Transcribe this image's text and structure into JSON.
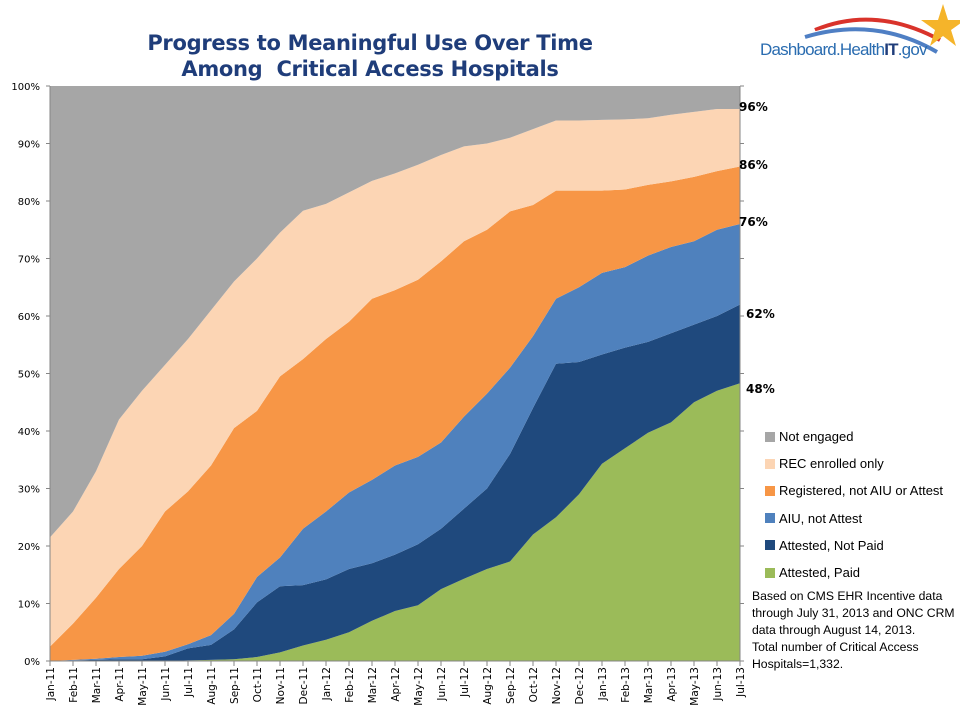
{
  "logo": {
    "text_prefix": "Dashboard.Health",
    "text_bold": "IT",
    "text_suffix": ".gov",
    "name": "Dashboard.HealthIT.gov"
  },
  "note": [
    "Based on CMS EHR Incentive data through July 31, 2013  and ONC CRM data through August 14, 2013.",
    "Total number of Critical Access Hospitals=1,332."
  ],
  "chart_data": {
    "type": "area",
    "stacked": true,
    "title": [
      "Progress to Meaningful Use Over Time",
      "Among  Critical Access Hospitals"
    ],
    "xlabel": "",
    "ylabel": "",
    "ylim": [
      0,
      100
    ],
    "y_ticks": [
      "0%",
      "10%",
      "20%",
      "30%",
      "40%",
      "50%",
      "60%",
      "70%",
      "80%",
      "90%",
      "100%"
    ],
    "grid": false,
    "legend_position": "right",
    "categories": [
      "Jan-11",
      "Feb-11",
      "Mar-11",
      "Apr-11",
      "May-11",
      "Jun-11",
      "Jul-11",
      "Aug-11",
      "Sep-11",
      "Oct-11",
      "Nov-11",
      "Dec-11",
      "Jan-12",
      "Feb-12",
      "Mar-12",
      "Apr-12",
      "May-12",
      "Jun-12",
      "Jul-12",
      "Aug-12",
      "Sep-12",
      "Oct-12",
      "Nov-12",
      "Dec-12",
      "Jan-13",
      "Feb-13",
      "Mar-13",
      "Apr-13",
      "May-13",
      "Jun-13",
      "Jul-13"
    ],
    "series": [
      {
        "name": "Attested, Paid",
        "color": "#9bbb59",
        "values": [
          0,
          0,
          0,
          0,
          0,
          0,
          0.1,
          0.2,
          0.3,
          0.7,
          1.5,
          2.7,
          3.7,
          5,
          7,
          8.7,
          9.7,
          12.5,
          14.3,
          16,
          17.3,
          22,
          25,
          29,
          34.3,
          37,
          39.7,
          41.5,
          45,
          47,
          48.3
        ]
      },
      {
        "name": "Attested, Not Paid",
        "color": "#1f497d",
        "values": [
          0,
          0.1,
          0.2,
          0.3,
          0.3,
          0.8,
          2.1,
          2.6,
          5.2,
          9.5,
          11.5,
          10.5,
          10.5,
          11,
          10,
          9.8,
          10.6,
          10.5,
          12.2,
          14,
          18.7,
          22,
          26.7,
          23,
          19,
          17.5,
          15.8,
          15.5,
          13.5,
          13,
          13.7
        ]
      },
      {
        "name": "AIU, not Attest",
        "color": "#4f81bd",
        "values": [
          0,
          0.1,
          0.2,
          0.4,
          0.6,
          0.8,
          0.7,
          1.7,
          2.7,
          4.4,
          5,
          9.8,
          11.8,
          13.3,
          14.5,
          15.5,
          15.2,
          15,
          16,
          16.5,
          15,
          12.5,
          11.3,
          13,
          14.2,
          14,
          15,
          15,
          14.5,
          15,
          14
        ]
      },
      {
        "name": "Registered, not AIU or Attest",
        "color": "#f79646",
        "values": [
          2.5,
          6.3,
          10.6,
          15.3,
          19.1,
          24.4,
          26.6,
          29.5,
          32.3,
          28.9,
          31.5,
          29.5,
          30,
          29.7,
          31.5,
          30.5,
          30.8,
          31.5,
          30.5,
          28.5,
          27.2,
          22.8,
          18.8,
          16.8,
          14.3,
          13.5,
          12.3,
          11.4,
          11.2,
          10.2,
          10
        ]
      },
      {
        "name": "REC enrolled only",
        "color": "#fcd5b4",
        "values": [
          19,
          19.5,
          22,
          26,
          27,
          25.5,
          26.5,
          27,
          25.5,
          26.5,
          25,
          25.8,
          23.5,
          22.5,
          20.5,
          20.3,
          20,
          18.5,
          16.5,
          15,
          12.8,
          13.2,
          12.2,
          12.2,
          12.3,
          12.2,
          11.6,
          11.6,
          11.3,
          10.8,
          10
        ]
      },
      {
        "name": "Not engaged",
        "color": "#a6a6a6",
        "values": [
          78.5,
          74,
          67,
          58,
          53,
          48.5,
          44,
          39,
          34,
          30,
          25.5,
          21.7,
          20.5,
          18.5,
          16.5,
          15.2,
          13.7,
          12,
          10.5,
          10,
          9,
          7.5,
          6,
          6,
          5.9,
          5.8,
          5.6,
          5,
          4.5,
          4,
          4
        ]
      }
    ],
    "legend_order": [
      "Not engaged",
      "REC enrolled only",
      "Registered, not AIU or Attest",
      "AIU, not Attest",
      "Attested, Not Paid",
      "Attested, Paid"
    ],
    "annotations": [
      {
        "text": "96%",
        "value": 96
      },
      {
        "text": "86%",
        "value": 86
      },
      {
        "text": "76%",
        "value": 76
      },
      {
        "text": "62%",
        "value": 62
      },
      {
        "text": "48%",
        "value": 48
      }
    ]
  }
}
